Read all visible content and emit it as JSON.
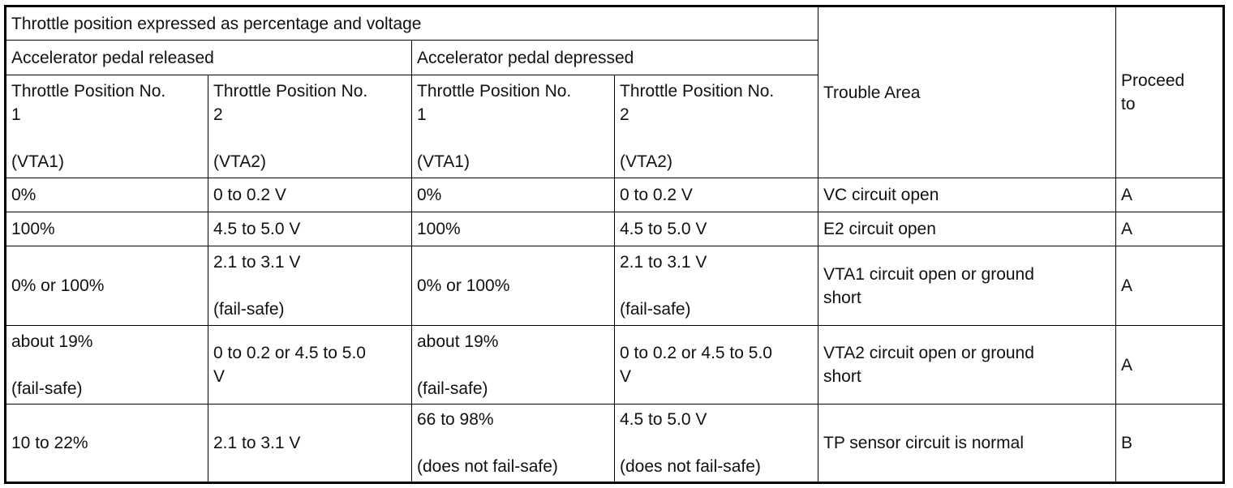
{
  "header": {
    "top": "Throttle position expressed as percentage and voltage",
    "released": "Accelerator pedal released",
    "depressed": "Accelerator pedal depressed",
    "tp1_line1": "Throttle Position No.",
    "tp1_line2": "1",
    "tp1_tag": "(VTA1)",
    "tp2_line1": "Throttle Position No.",
    "tp2_line2": "2",
    "tp2_tag": "(VTA2)",
    "trouble_area": "Trouble Area",
    "proceed_line1": "Proceed",
    "proceed_line2": "to"
  },
  "rows": [
    {
      "rel_vta1": "0%",
      "rel_vta2": "0 to 0.2 V",
      "dep_vta1": "0%",
      "dep_vta2": "0 to 0.2 V",
      "trouble": "VC circuit open",
      "proceed": "A"
    },
    {
      "rel_vta1": "100%",
      "rel_vta2": "4.5 to 5.0 V",
      "dep_vta1": "100%",
      "dep_vta2": "4.5 to 5.0 V",
      "trouble": "E2 circuit open",
      "proceed": "A"
    },
    {
      "rel_vta1": "0% or 100%",
      "rel_vta2": "2.1 to 3.1 V",
      "rel_vta2_note": "(fail-safe)",
      "dep_vta1": "0% or 100%",
      "dep_vta2": "2.1 to 3.1 V",
      "dep_vta2_note": "(fail-safe)",
      "trouble_line1": "VTA1 circuit open or ground",
      "trouble_line2": "short",
      "proceed": "A"
    },
    {
      "rel_vta1": "about 19%",
      "rel_vta1_note": "(fail-safe)",
      "rel_vta2_line1": "0 to 0.2 or 4.5 to 5.0",
      "rel_vta2_line2": "V",
      "dep_vta1": "about 19%",
      "dep_vta1_note": "(fail-safe)",
      "dep_vta2_line1": "0 to 0.2 or 4.5 to 5.0",
      "dep_vta2_line2": "V",
      "trouble_line1": "VTA2 circuit open or ground",
      "trouble_line2": "short",
      "proceed": "A"
    },
    {
      "rel_vta1": "10 to 22%",
      "rel_vta2": "2.1 to 3.1 V",
      "dep_vta1": "66 to 98%",
      "dep_vta1_note": "(does not fail-safe)",
      "dep_vta2": "4.5 to 5.0 V",
      "dep_vta2_note": "(does not fail-safe)",
      "trouble": "TP sensor circuit is normal",
      "proceed": "B"
    }
  ]
}
